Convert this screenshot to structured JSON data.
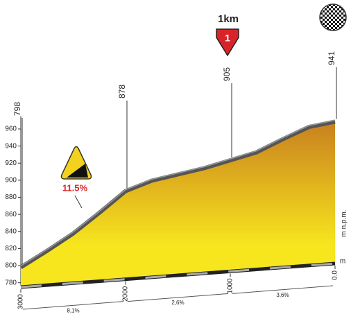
{
  "chart_data": {
    "type": "area",
    "distance": [
      3000,
      2750,
      2500,
      2250,
      2000,
      1750,
      1500,
      1250,
      1000,
      750,
      500,
      250,
      0
    ],
    "elevation": [
      798,
      815,
      833,
      855,
      878,
      888,
      893,
      898,
      905,
      912,
      925,
      937,
      941
    ],
    "xlim": [
      3000,
      0
    ],
    "xticks": [
      3000,
      2000,
      1000,
      {
        "value": 0,
        "label": "0.0"
      }
    ],
    "ylim": [
      770,
      975
    ],
    "yticks": [
      780,
      800,
      820,
      840,
      860,
      880,
      900,
      920,
      940,
      960
    ],
    "y_unit_label": "m n.p.m.",
    "baseline_label": "m",
    "altitude_labels": [
      {
        "distance": 3000,
        "altitude": 798
      },
      {
        "distance": 2000,
        "altitude": 878
      },
      {
        "distance": 1000,
        "altitude": 905
      },
      {
        "distance": 0,
        "altitude": 941
      }
    ],
    "segments": [
      {
        "from": 3000,
        "to": 2000,
        "label": "8,1%"
      },
      {
        "from": 2000,
        "to": 1000,
        "label": "2,6%"
      },
      {
        "from": 1000,
        "to": 0,
        "label": "3,6%"
      }
    ],
    "annotations": {
      "km_marker": "1km",
      "km_number": "1",
      "steep_label": "11.5%"
    },
    "color_top": "#c8801e",
    "color_bottom": "#f7e51e"
  }
}
